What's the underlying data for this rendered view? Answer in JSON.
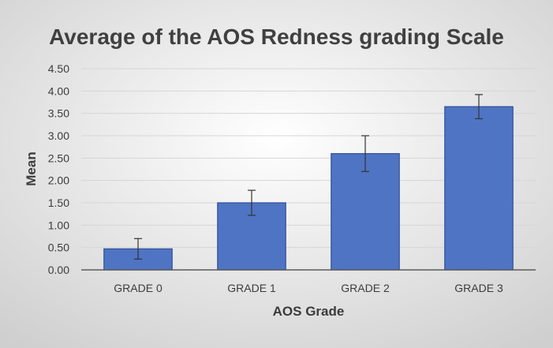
{
  "chart_data": {
    "type": "bar",
    "title": "Average of the AOS Redness grading Scale",
    "xlabel": "AOS Grade",
    "ylabel": "Mean",
    "categories": [
      "GRADE 0",
      "GRADE 1",
      "GRADE 2",
      "GRADE 3"
    ],
    "values": [
      0.47,
      1.5,
      2.6,
      3.65
    ],
    "error_bars": [
      {
        "low": 0.24,
        "high": 0.7
      },
      {
        "low": 1.22,
        "high": 1.78
      },
      {
        "low": 2.2,
        "high": 3.0
      },
      {
        "low": 3.38,
        "high": 3.92
      }
    ],
    "ylim": [
      0,
      4.5
    ],
    "yticks": [
      "0.00",
      "0.50",
      "1.00",
      "1.50",
      "2.00",
      "2.50",
      "3.00",
      "3.50",
      "4.00",
      "4.50"
    ],
    "grid": true,
    "legend": false,
    "colors": {
      "bar_fill": "#4f74c3",
      "bar_stroke": "#2f4f97",
      "error_bar": "#333333",
      "grid": "#d6d6d6",
      "axis": "#5b5b5b",
      "title": "#404040",
      "tick_text": "#3b3b3b",
      "label_text": "#3b3b3b",
      "background_center": "#ffffff",
      "background_edge": "#cfcfcf"
    }
  }
}
